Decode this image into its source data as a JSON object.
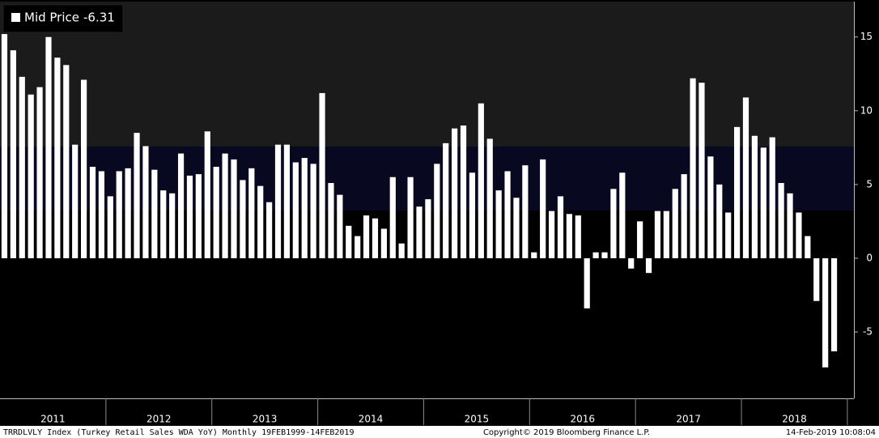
{
  "chart_data": {
    "type": "bar",
    "series": [
      {
        "name": "Mid Price",
        "color": "#ffffff",
        "last_label": "-6.31",
        "values": [
          15.2,
          14.1,
          12.3,
          11.1,
          11.6,
          15.0,
          13.6,
          13.1,
          7.7,
          12.1,
          6.2,
          5.9,
          4.2,
          5.9,
          6.1,
          8.5,
          7.6,
          6.0,
          4.6,
          4.4,
          7.1,
          5.6,
          5.7,
          8.6,
          6.2,
          7.1,
          6.7,
          5.3,
          6.1,
          4.9,
          3.8,
          7.7,
          7.7,
          6.5,
          6.8,
          6.4,
          11.2,
          5.1,
          4.3,
          2.2,
          1.5,
          2.9,
          2.7,
          2.0,
          5.5,
          1.0,
          5.5,
          3.5,
          4.0,
          6.4,
          7.8,
          8.8,
          9.0,
          5.8,
          10.5,
          8.1,
          4.6,
          5.9,
          4.1,
          6.3,
          0.4,
          6.7,
          3.2,
          4.2,
          3.0,
          2.9,
          -3.4,
          0.4,
          0.4,
          4.7,
          5.8,
          -0.7,
          2.5,
          -1.0,
          3.2,
          3.2,
          4.7,
          5.7,
          12.2,
          11.9,
          6.9,
          5.0,
          3.1,
          8.9,
          10.9,
          8.3,
          7.5,
          8.2,
          5.1,
          4.4,
          3.1,
          1.5,
          -2.9,
          -7.4,
          -6.31
        ]
      }
    ],
    "categories": [
      null,
      null,
      null,
      null,
      null,
      null,
      null,
      null,
      null,
      null,
      null,
      null,
      null,
      null,
      null,
      null,
      null,
      null,
      null,
      null,
      null,
      null,
      null,
      null,
      null,
      null,
      null,
      null,
      null,
      null,
      null,
      null,
      null,
      null,
      null,
      null,
      null,
      null,
      null,
      null,
      null,
      null,
      null,
      null,
      null,
      null,
      null,
      null,
      null,
      null,
      null,
      null,
      null,
      null,
      null,
      null,
      null,
      null,
      null,
      null,
      null,
      null,
      null,
      null,
      null,
      null,
      null,
      null,
      null,
      null,
      null,
      null,
      null,
      null,
      null,
      null,
      null,
      null,
      null,
      null,
      null,
      null,
      null,
      null,
      null,
      null,
      null,
      null,
      null,
      null,
      null,
      null,
      null,
      null,
      null
    ],
    "year_labels": [
      "2011",
      "2012",
      "2013",
      "2014",
      "2015",
      "2016",
      "2017",
      "2018"
    ],
    "ylim": [
      -9.5,
      17.4
    ],
    "yticks": [
      -5,
      0,
      5,
      10,
      15
    ],
    "footer_left": "TRRDLVLY Index (Turkey Retail Sales WDA YoY)  Monthly 19FEB1999-14FEB2019",
    "footer_center": "Copyright© 2019 Bloomberg Finance L.P.",
    "footer_right": "14-Feb-2019 10:08:04"
  }
}
